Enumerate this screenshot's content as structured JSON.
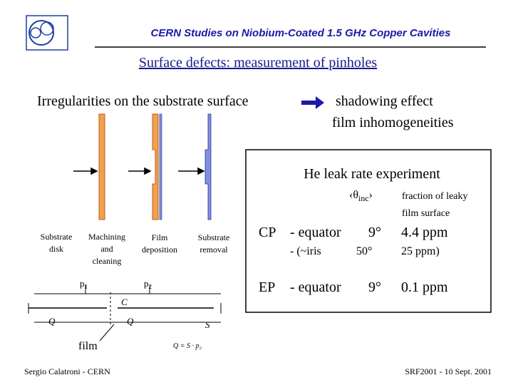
{
  "header": {
    "title": "CERN Studies on Niobium-Coated 1.5 GHz Copper Cavities",
    "subtitle": "Surface defects: measurement of pinholes"
  },
  "intro": {
    "left": "Irregularities on the substrate surface",
    "right": [
      "shadowing effect",
      "film inhomogeneities"
    ]
  },
  "steps": [
    [
      "Substrate",
      "disk"
    ],
    [
      "Machining",
      "and",
      "cleaning"
    ],
    [
      "Film",
      "deposition"
    ],
    [
      "Substrate",
      "removal"
    ]
  ],
  "circuit": {
    "p1": {
      "symbol": "p",
      "sub": "1"
    },
    "p2": {
      "symbol": "p",
      "sub": "2"
    },
    "q_left": "Q",
    "c": "C",
    "q_mid": "Q",
    "s": "S",
    "formula": "Q = S · p₂",
    "film": "film"
  },
  "box": {
    "title": "He leak rate experiment",
    "angle": {
      "open": "‹θ",
      "sub": "inc",
      "close": "›"
    },
    "fraction": [
      "fraction of leaky",
      "film surface"
    ],
    "rows": [
      [
        "CP",
        "- equator",
        "9°",
        "4.4 ppm"
      ],
      [
        "",
        "- (~iris",
        "50°",
        "25 ppm)"
      ],
      [
        "EP",
        "- equator",
        "9°",
        "0.1 ppm"
      ]
    ]
  },
  "footer": {
    "left": "Sergio Calatroni - CERN",
    "right": "SRF2001 - 10 Sept. 2001"
  }
}
